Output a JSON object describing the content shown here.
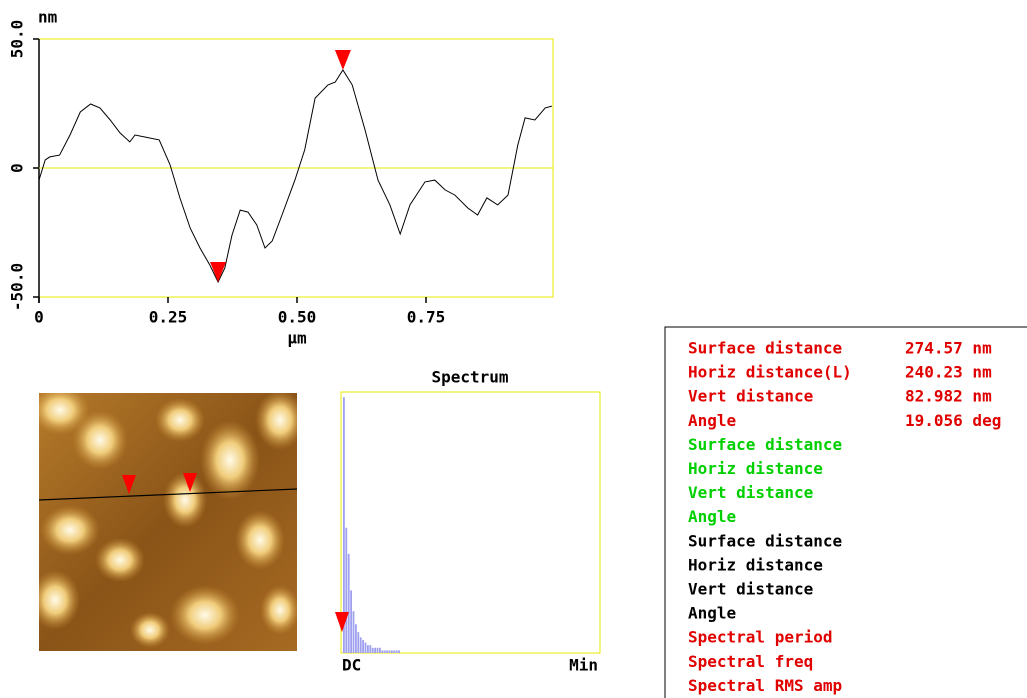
{
  "chart_data": [
    {
      "type": "line",
      "y_unit": "nm",
      "x_label": "µm",
      "x": [
        0,
        0.012,
        0.021,
        0.04,
        0.06,
        0.08,
        0.1,
        0.118,
        0.138,
        0.157,
        0.176,
        0.186,
        0.205,
        0.233,
        0.254,
        0.273,
        0.293,
        0.312,
        0.331,
        0.347,
        0.36,
        0.374,
        0.39,
        0.405,
        0.422,
        0.438,
        0.452,
        0.471,
        0.496,
        0.515,
        0.535,
        0.56,
        0.574,
        0.589,
        0.607,
        0.632,
        0.657,
        0.68,
        0.7,
        0.719,
        0.748,
        0.767,
        0.787,
        0.806,
        0.831,
        0.85,
        0.868,
        0.889,
        0.909,
        0.928,
        0.942,
        0.961,
        0.981,
        0.994
      ],
      "values": [
        -4.7,
        3.1,
        4.3,
        5,
        12.8,
        21.7,
        24.8,
        23.3,
        18.6,
        13.6,
        10.1,
        12.8,
        12,
        10.9,
        1.2,
        -11.6,
        -23.3,
        -31,
        -37.6,
        -44.2,
        -38.8,
        -26,
        -16.3,
        -17.1,
        -22.1,
        -31,
        -28.3,
        -18.2,
        -4.7,
        7,
        27.1,
        32.2,
        33.3,
        38,
        32.2,
        14.7,
        -4.7,
        -14.3,
        -25.6,
        -14.3,
        -5.4,
        -4.7,
        -8.5,
        -10.5,
        -15.5,
        -18.2,
        -11.6,
        -14.3,
        -10.5,
        8.9,
        19.4,
        18.6,
        23.3,
        24
      ],
      "color": "#000000",
      "cursors": [
        {
          "x": 0.347,
          "y": -44.2
        },
        {
          "x": 0.589,
          "y": 38
        }
      ],
      "cursor_color": "#ff0000",
      "xlim": [
        0,
        1.0
      ],
      "ylim": [
        -50,
        50
      ],
      "xticks": [
        0,
        0.25,
        {
          "value": 0.5,
          "label": "0.50"
        },
        0.75
      ],
      "yticks": [
        {
          "value": -50,
          "label": "-50.0"
        },
        0,
        {
          "value": 50,
          "label": "50.0"
        }
      ],
      "zero_line": true,
      "frame_color": "#e8e800"
    },
    {
      "type": "bar",
      "title": "Spectrum",
      "x_labels": [
        "DC",
        "Min"
      ],
      "values": [
        98,
        48,
        38,
        24,
        16,
        11,
        8,
        6,
        5,
        4,
        3,
        3,
        2,
        2,
        2,
        2,
        1,
        1,
        1,
        1,
        1,
        1,
        1,
        1
      ],
      "color": "#a0a0f0",
      "ylim": [
        0,
        100
      ],
      "frame_color": "#e8e800"
    }
  ],
  "readout": {
    "rows": [
      {
        "label": "Surface distance",
        "value": "274.57 nm",
        "color": "#e00000"
      },
      {
        "label": "Horiz distance(L)",
        "value": "240.23 nm",
        "color": "#e00000"
      },
      {
        "label": "Vert distance",
        "value": "82.982 nm",
        "color": "#e00000"
      },
      {
        "label": "Angle",
        "value": "19.056 deg",
        "color": "#e00000"
      },
      {
        "label": "Surface distance",
        "color": "#00d000"
      },
      {
        "label": "Horiz distance",
        "color": "#00d000"
      },
      {
        "label": "Vert distance",
        "color": "#00d000"
      },
      {
        "label": "Angle",
        "color": "#00d000"
      },
      {
        "label": "Surface distance",
        "color": "#000000"
      },
      {
        "label": "Horiz distance",
        "color": "#000000"
      },
      {
        "label": "Vert distance",
        "color": "#000000"
      },
      {
        "label": "Angle",
        "color": "#000000"
      },
      {
        "label": "Spectral period",
        "color": "#e00000"
      },
      {
        "label": "Spectral freq",
        "color": "#e00000"
      },
      {
        "label": "Spectral RMS amp",
        "color": "#e00000"
      }
    ]
  }
}
